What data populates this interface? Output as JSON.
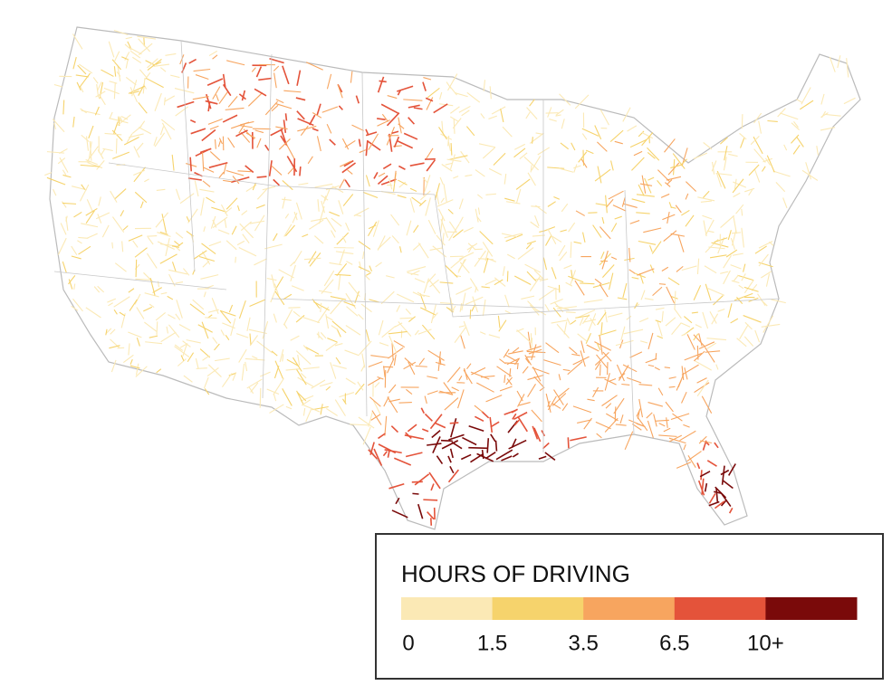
{
  "legend": {
    "title": "HOURS OF DRIVING",
    "colors": [
      "#fbe9b5",
      "#f6d36c",
      "#f7a55f",
      "#e4533a",
      "#7a0a0a"
    ],
    "ticks": [
      "0",
      "1.5",
      "3.5",
      "6.5",
      "10+"
    ]
  }
}
